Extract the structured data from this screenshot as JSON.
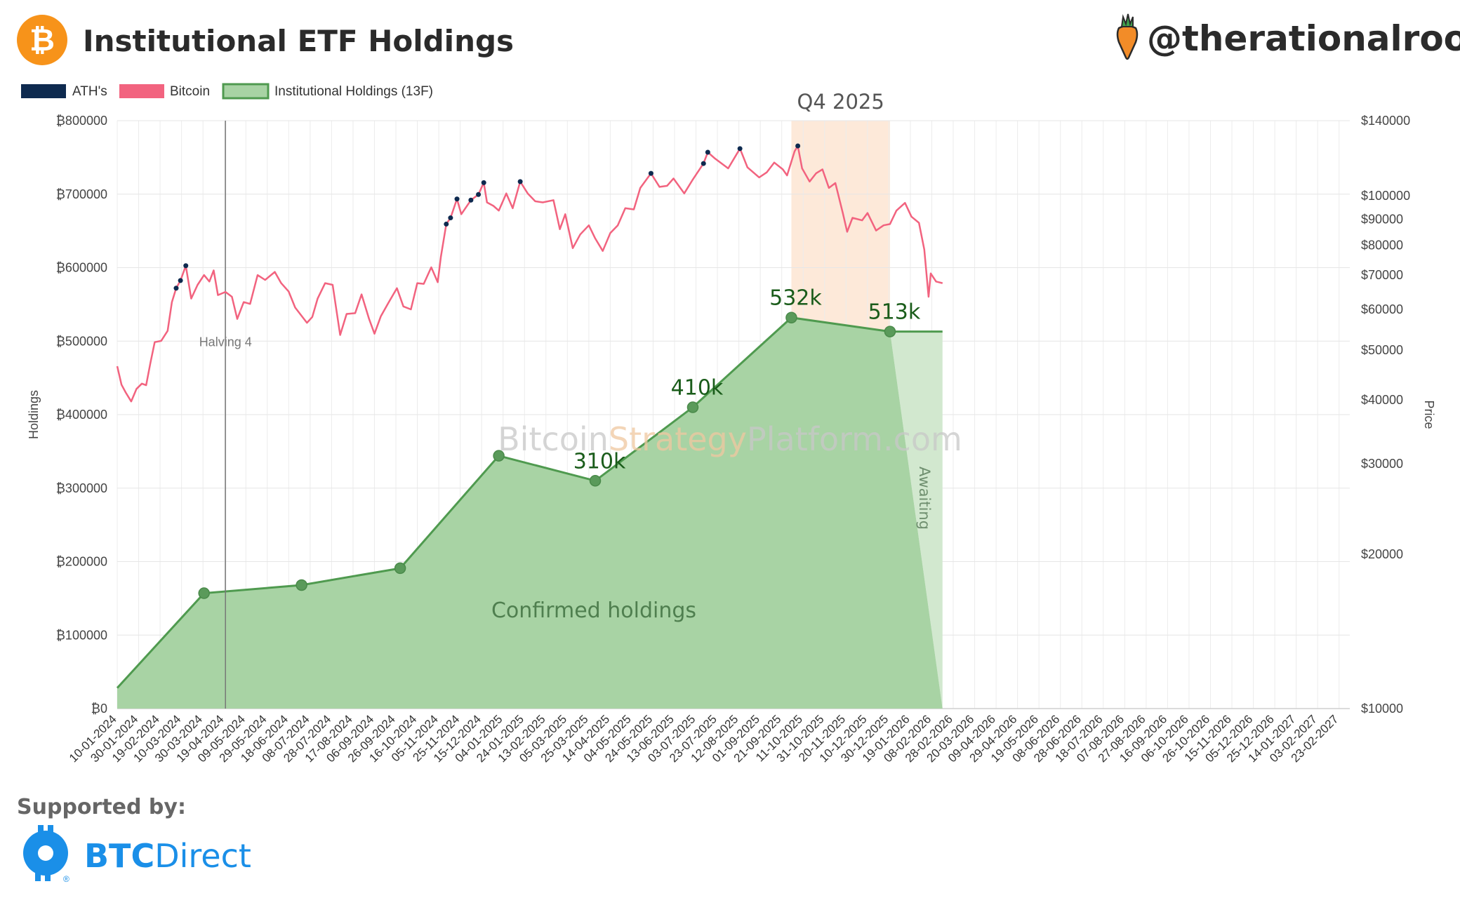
{
  "header": {
    "title": "Institutional ETF Holdings",
    "handle": "@therationalroot",
    "bitcoin_logo_glyph": "₿",
    "icons": [
      "bitcoin-logo-icon",
      "carrot-icon"
    ]
  },
  "footer": {
    "supported_by": "Supported by:",
    "brand_btc": "BTC",
    "brand_direct": "Direct",
    "brand_registered": "®"
  },
  "colors": {
    "ath": "#0e2a4f",
    "bitcoin": "#f2637f",
    "holdings_fill": "#a8d3a4",
    "holdings_line": "#4f9a4f",
    "awaiting_fill": "#d2e8cf",
    "quarter_band": "#fde9d9",
    "bitcoin_logo": "#f7931a",
    "brand": "#1a8fe8"
  },
  "chart_data": {
    "type": "line",
    "legend": {
      "placement": "top-left",
      "items": [
        "ATH's",
        "Bitcoin",
        "Institutional Holdings (13F)"
      ]
    },
    "y_left": {
      "title": "Holdings",
      "range": [
        0,
        800000
      ],
      "tick_labels": [
        "₿0",
        "₿100000",
        "₿200000",
        "₿300000",
        "₿400000",
        "₿500000",
        "₿600000",
        "₿700000",
        "₿800000"
      ]
    },
    "y_right": {
      "title": "Price",
      "scale": "log",
      "range": [
        10000,
        140000
      ],
      "ticks": [
        10000,
        20000,
        30000,
        40000,
        50000,
        60000,
        70000,
        80000,
        90000,
        100000,
        140000
      ],
      "tick_labels": [
        "$10000",
        "$20000",
        "$30000",
        "$40000",
        "$50000",
        "$60000",
        "$70000",
        "$80000",
        "$90000",
        "$100000",
        "$140000"
      ]
    },
    "x": {
      "range": [
        "2024-01-10",
        "2027-03-05"
      ],
      "tick_labels": [
        "10-01-2024",
        "30-01-2024",
        "19-02-2024",
        "10-03-2024",
        "30-03-2024",
        "19-04-2024",
        "09-05-2024",
        "29-05-2024",
        "18-06-2024",
        "08-07-2024",
        "28-07-2024",
        "17-08-2024",
        "06-09-2024",
        "26-09-2024",
        "16-10-2024",
        "05-11-2024",
        "25-11-2024",
        "15-12-2024",
        "04-01-2025",
        "24-01-2025",
        "13-02-2025",
        "05-03-2025",
        "25-03-2025",
        "14-04-2025",
        "04-05-2025",
        "24-05-2025",
        "13-06-2025",
        "03-07-2025",
        "23-07-2025",
        "12-08-2025",
        "01-09-2025",
        "21-09-2025",
        "11-10-2025",
        "31-10-2025",
        "20-11-2025",
        "10-12-2025",
        "30-12-2025",
        "19-01-2026",
        "08-02-2026",
        "28-02-2026",
        "20-03-2026",
        "09-04-2026",
        "29-04-2026",
        "19-05-2026",
        "08-06-2026",
        "28-06-2026",
        "18-07-2026",
        "07-08-2026",
        "27-08-2026",
        "16-09-2026",
        "06-10-2026",
        "26-10-2026",
        "15-11-2026",
        "05-12-2026",
        "25-12-2026",
        "14-01-2027",
        "03-02-2027",
        "23-02-2027"
      ]
    },
    "holdings_series": {
      "name": "Institutional Holdings (13F)",
      "points": [
        {
          "date": "2024-01-10",
          "value": 28000
        },
        {
          "date": "2024-03-31",
          "value": 157000
        },
        {
          "date": "2024-06-30",
          "value": 168000
        },
        {
          "date": "2024-09-30",
          "value": 191000
        },
        {
          "date": "2024-12-31",
          "value": 344000
        },
        {
          "date": "2025-03-31",
          "value": 310000
        },
        {
          "date": "2025-06-30",
          "value": 410000
        },
        {
          "date": "2025-09-30",
          "value": 532000
        },
        {
          "date": "2025-12-31",
          "value": 513000
        }
      ],
      "awaiting_end": {
        "date": "2026-02-18",
        "value": 513000
      }
    },
    "annotations": [
      {
        "date": "2025-03-31",
        "value": 310000,
        "label": "310k"
      },
      {
        "date": "2025-06-30",
        "value": 410000,
        "label": "410k"
      },
      {
        "date": "2025-09-30",
        "value": 532000,
        "label": "532k"
      },
      {
        "date": "2025-12-31",
        "value": 513000,
        "label": "513k"
      }
    ],
    "highlight_band": {
      "start": "2025-09-30",
      "end": "2025-12-31",
      "label": "Q4 2025"
    },
    "vertical_marker": {
      "date": "2024-04-20",
      "label": "Halving 4"
    },
    "area_labels": {
      "confirmed": "Confirmed holdings",
      "awaiting": "Awaiting"
    },
    "watermark": {
      "part1": "Bitcoin",
      "part2": "Strategy",
      "part3": "Platform.com"
    },
    "bitcoin_series": {
      "name": "Bitcoin",
      "points": [
        [
          "2024-01-10",
          46500
        ],
        [
          "2024-01-14",
          42800
        ],
        [
          "2024-01-18",
          41300
        ],
        [
          "2024-01-23",
          39700
        ],
        [
          "2024-01-28",
          42000
        ],
        [
          "2024-02-02",
          43000
        ],
        [
          "2024-02-06",
          42700
        ],
        [
          "2024-02-10",
          47200
        ],
        [
          "2024-02-14",
          51800
        ],
        [
          "2024-02-20",
          52100
        ],
        [
          "2024-02-26",
          54500
        ],
        [
          "2024-03-01",
          62000
        ],
        [
          "2024-03-05",
          66000
        ],
        [
          "2024-03-09",
          68300
        ],
        [
          "2024-03-14",
          73000
        ],
        [
          "2024-03-19",
          63000
        ],
        [
          "2024-03-25",
          67000
        ],
        [
          "2024-03-31",
          70000
        ],
        [
          "2024-04-05",
          68000
        ],
        [
          "2024-04-09",
          71500
        ],
        [
          "2024-04-13",
          64000
        ],
        [
          "2024-04-20",
          64900
        ],
        [
          "2024-04-26",
          63500
        ],
        [
          "2024-05-01",
          57500
        ],
        [
          "2024-05-07",
          62000
        ],
        [
          "2024-05-13",
          61500
        ],
        [
          "2024-05-20",
          70000
        ],
        [
          "2024-05-27",
          68500
        ],
        [
          "2024-06-05",
          71000
        ],
        [
          "2024-06-11",
          67500
        ],
        [
          "2024-06-18",
          65000
        ],
        [
          "2024-06-24",
          60500
        ],
        [
          "2024-07-05",
          56500
        ],
        [
          "2024-07-10",
          58000
        ],
        [
          "2024-07-15",
          63000
        ],
        [
          "2024-07-22",
          67500
        ],
        [
          "2024-07-29",
          67000
        ],
        [
          "2024-08-05",
          53500
        ],
        [
          "2024-08-11",
          58800
        ],
        [
          "2024-08-19",
          59000
        ],
        [
          "2024-08-25",
          64200
        ],
        [
          "2024-09-01",
          57500
        ],
        [
          "2024-09-06",
          53800
        ],
        [
          "2024-09-12",
          58200
        ],
        [
          "2024-09-19",
          61800
        ],
        [
          "2024-09-27",
          66000
        ],
        [
          "2024-10-03",
          60800
        ],
        [
          "2024-10-10",
          60000
        ],
        [
          "2024-10-16",
          67500
        ],
        [
          "2024-10-22",
          67300
        ],
        [
          "2024-10-29",
          72500
        ],
        [
          "2024-11-04",
          67800
        ],
        [
          "2024-11-07",
          76000
        ],
        [
          "2024-11-12",
          88000
        ],
        [
          "2024-11-16",
          90500
        ],
        [
          "2024-11-22",
          98500
        ],
        [
          "2024-11-26",
          92000
        ],
        [
          "2024-12-05",
          98000
        ],
        [
          "2024-12-12",
          100500
        ],
        [
          "2024-12-17",
          106000
        ],
        [
          "2024-12-20",
          97000
        ],
        [
          "2024-12-26",
          95500
        ],
        [
          "2024-12-31",
          93500
        ],
        [
          "2025-01-07",
          101000
        ],
        [
          "2025-01-13",
          94500
        ],
        [
          "2025-01-20",
          106500
        ],
        [
          "2025-01-27",
          101000
        ],
        [
          "2025-02-03",
          97500
        ],
        [
          "2025-02-10",
          97000
        ],
        [
          "2025-02-20",
          98000
        ],
        [
          "2025-02-26",
          86000
        ],
        [
          "2025-03-03",
          92000
        ],
        [
          "2025-03-10",
          79000
        ],
        [
          "2025-03-17",
          84000
        ],
        [
          "2025-03-25",
          87500
        ],
        [
          "2025-03-31",
          82500
        ],
        [
          "2025-04-07",
          78000
        ],
        [
          "2025-04-14",
          84500
        ],
        [
          "2025-04-21",
          87500
        ],
        [
          "2025-04-28",
          94500
        ],
        [
          "2025-05-06",
          94000
        ],
        [
          "2025-05-12",
          103500
        ],
        [
          "2025-05-22",
          110500
        ],
        [
          "2025-05-30",
          104000
        ],
        [
          "2025-06-06",
          104500
        ],
        [
          "2025-06-12",
          108000
        ],
        [
          "2025-06-22",
          101000
        ],
        [
          "2025-06-30",
          107500
        ],
        [
          "2025-07-10",
          115500
        ],
        [
          "2025-07-14",
          121500
        ],
        [
          "2025-07-21",
          118000
        ],
        [
          "2025-08-02",
          113000
        ],
        [
          "2025-08-13",
          123500
        ],
        [
          "2025-08-20",
          113500
        ],
        [
          "2025-08-31",
          108500
        ],
        [
          "2025-09-07",
          111000
        ],
        [
          "2025-09-14",
          116000
        ],
        [
          "2025-09-22",
          112500
        ],
        [
          "2025-09-26",
          109500
        ],
        [
          "2025-10-03",
          122000
        ],
        [
          "2025-10-06",
          125000
        ],
        [
          "2025-10-10",
          113000
        ],
        [
          "2025-10-17",
          106500
        ],
        [
          "2025-10-23",
          110500
        ],
        [
          "2025-10-29",
          112500
        ],
        [
          "2025-11-04",
          103500
        ],
        [
          "2025-11-10",
          105800
        ],
        [
          "2025-11-17",
          92500
        ],
        [
          "2025-11-21",
          85000
        ],
        [
          "2025-11-26",
          90500
        ],
        [
          "2025-12-05",
          89500
        ],
        [
          "2025-12-10",
          92500
        ],
        [
          "2025-12-18",
          85500
        ],
        [
          "2025-12-25",
          87500
        ],
        [
          "2025-12-31",
          88000
        ],
        [
          "2026-01-06",
          93500
        ],
        [
          "2026-01-14",
          96800
        ],
        [
          "2026-01-20",
          91000
        ],
        [
          "2026-01-27",
          88500
        ],
        [
          "2026-02-01",
          78500
        ],
        [
          "2026-02-05",
          63500
        ],
        [
          "2026-02-07",
          70500
        ],
        [
          "2026-02-12",
          68000
        ],
        [
          "2026-02-18",
          67500
        ]
      ],
      "ath_dates": [
        "2024-03-05",
        "2024-03-09",
        "2024-03-14",
        "2024-11-12",
        "2024-11-16",
        "2024-11-22",
        "2024-12-05",
        "2024-12-12",
        "2024-12-17",
        "2025-01-20",
        "2025-05-22",
        "2025-07-10",
        "2025-07-14",
        "2025-08-13",
        "2025-10-06"
      ]
    }
  }
}
